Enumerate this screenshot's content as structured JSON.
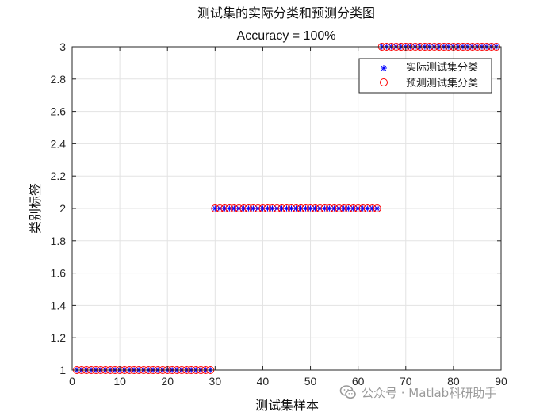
{
  "chart_data": {
    "type": "scatter",
    "title": "测试集的实际分类和预测分类图",
    "subtitle": "Accuracy = 100%",
    "xlabel": "测试集样本",
    "ylabel": "类别标签",
    "xlim": [
      0,
      90
    ],
    "ylim": [
      1,
      3
    ],
    "xticks": [
      0,
      10,
      20,
      30,
      40,
      50,
      60,
      70,
      80,
      90
    ],
    "yticks": [
      1,
      1.2,
      1.4,
      1.6,
      1.8,
      2,
      2.2,
      2.4,
      2.6,
      2.8,
      3
    ],
    "ytick_labels": [
      "1",
      "1.2",
      "1.4",
      "1.6",
      "1.8",
      "2",
      "2.2",
      "2.4",
      "2.6",
      "2.8",
      "3"
    ],
    "grid": true,
    "legend_position": "top-right",
    "segments": [
      {
        "from": 1,
        "to": 29,
        "label": 1
      },
      {
        "from": 30,
        "to": 64,
        "label": 2
      },
      {
        "from": 65,
        "to": 89,
        "label": 3
      }
    ],
    "series": [
      {
        "name": "实际测试集分类",
        "marker": "asterisk",
        "color": "#0000ff"
      },
      {
        "name": "预测测试集分类",
        "marker": "circle",
        "color": "#ff0000"
      }
    ]
  },
  "watermark": {
    "text": "公众号 · Matlab科研助手",
    "icon": "wechat-icon"
  }
}
